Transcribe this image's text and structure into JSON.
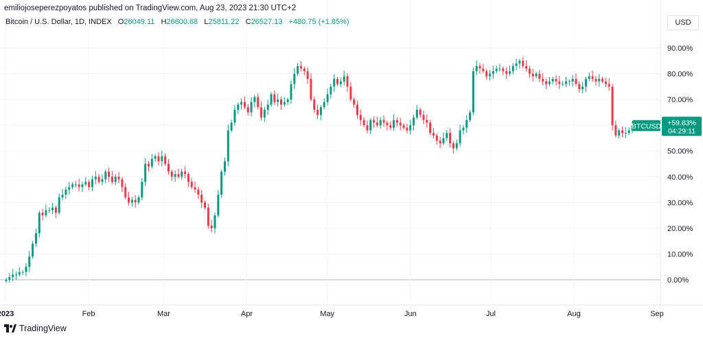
{
  "header": {
    "published": "emiliojoseperezpoyatos published on TradingView.com, Aug 23, 2023 21:30 UTC+2",
    "currency": "USD"
  },
  "legend": {
    "symbol": "Bitcoin / U.S. Dollar, 1D, INDEX",
    "o_label": "O",
    "o": "26049.11",
    "h_label": "H",
    "h": "26600.68",
    "l_label": "L",
    "l": "25811.22",
    "c_label": "C",
    "c": "26527.13",
    "change": "+480.75 (+1.85%)"
  },
  "price_tag": {
    "symbol": "BTCUSD",
    "value": "+59.83%",
    "countdown": "04:29:11"
  },
  "footer": {
    "brand": "TradingView"
  },
  "colors": {
    "up": "#089981",
    "down": "#f23645",
    "grid": "#f0f3fa",
    "text": "#131722"
  },
  "chart_data": {
    "type": "candlestick",
    "yaxis_labels": [
      "90.00%",
      "80.00%",
      "70.00%",
      "60.00%",
      "50.00%",
      "40.00%",
      "30.00%",
      "20.00%",
      "10.00%",
      "0.00%"
    ],
    "yaxis_values": [
      90,
      80,
      70,
      60,
      50,
      40,
      30,
      20,
      10,
      0
    ],
    "xaxis_labels": [
      "2023",
      "Feb",
      "Mar",
      "Apr",
      "May",
      "Jun",
      "Jul",
      "Aug",
      "Sep"
    ],
    "xaxis_days": [
      1,
      32,
      60,
      91,
      121,
      152,
      182,
      213,
      244
    ],
    "ylim": [
      -9,
      95
    ],
    "last_value_pct": 59.83,
    "closes_pct": [
      0,
      1,
      2,
      2,
      3,
      3,
      5,
      9,
      14,
      18,
      26,
      25,
      27,
      27,
      28,
      26,
      32,
      33,
      35,
      36,
      37,
      37,
      36,
      37,
      38,
      36,
      39,
      40,
      38,
      39,
      42,
      40,
      38,
      40,
      39,
      36,
      32,
      30,
      31,
      30,
      32,
      38,
      45,
      44,
      47,
      48,
      46,
      48,
      45,
      42,
      40,
      41,
      40,
      42,
      41,
      38,
      36,
      35,
      33,
      30,
      28,
      21,
      20,
      25,
      33,
      42,
      46,
      58,
      61,
      66,
      68,
      69,
      67,
      65,
      69,
      71,
      67,
      63,
      66,
      68,
      72,
      69,
      70,
      68,
      69,
      70,
      76,
      80,
      83,
      82,
      81,
      78,
      70,
      66,
      64,
      67,
      69,
      72,
      75,
      78,
      76,
      77,
      79,
      75,
      70,
      68,
      64,
      62,
      60,
      58,
      62,
      61,
      60,
      62,
      61,
      60,
      59,
      62,
      61,
      60,
      59,
      58,
      60,
      63,
      66,
      64,
      62,
      61,
      57,
      56,
      54,
      53,
      55,
      57,
      53,
      51,
      53,
      58,
      59,
      62,
      65,
      81,
      83,
      82,
      81,
      79,
      80,
      81,
      82,
      82,
      81,
      80,
      81,
      83,
      84,
      85,
      83,
      82,
      80,
      79,
      80,
      78,
      77,
      76,
      77,
      78,
      77,
      76,
      76,
      77,
      77,
      78,
      76,
      74,
      75,
      78,
      79,
      78,
      77,
      78,
      77,
      76,
      75,
      60,
      56,
      58,
      57,
      57,
      58,
      59.83
    ]
  }
}
